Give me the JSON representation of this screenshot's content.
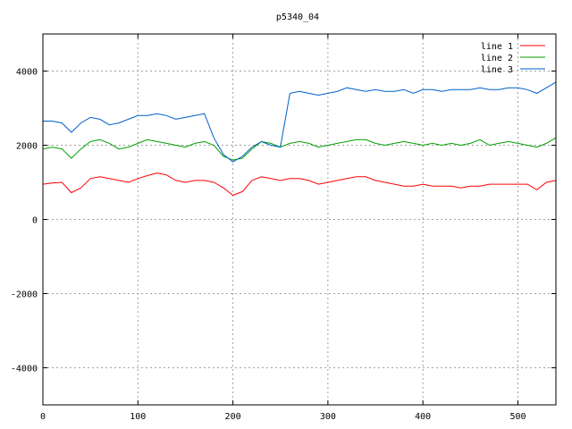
{
  "chart_data": {
    "type": "line",
    "title": "p5340_04",
    "xlabel": "",
    "ylabel": "",
    "xlim": [
      0,
      540
    ],
    "ylim": [
      -5000,
      5000
    ],
    "x_ticks": [
      0,
      100,
      200,
      300,
      400,
      500
    ],
    "y_ticks": [
      -4000,
      -2000,
      0,
      2000,
      4000
    ],
    "x_tick_labels": [
      "0",
      "100",
      "200",
      "300",
      "400",
      "500"
    ],
    "y_tick_labels": [
      "-4000",
      "-2000",
      "0",
      "2000",
      "4000"
    ],
    "grid": true,
    "legend_position": "top-right",
    "x": [
      0,
      10,
      20,
      30,
      40,
      50,
      60,
      70,
      80,
      90,
      100,
      110,
      120,
      130,
      140,
      150,
      160,
      170,
      180,
      190,
      200,
      210,
      220,
      230,
      240,
      250,
      260,
      270,
      280,
      290,
      300,
      310,
      320,
      330,
      340,
      350,
      360,
      370,
      380,
      390,
      400,
      410,
      420,
      430,
      440,
      450,
      460,
      470,
      480,
      490,
      500,
      510,
      520,
      530,
      540
    ],
    "series": [
      {
        "name": "line 1",
        "color": "#ff0000",
        "values": [
          950,
          980,
          1000,
          720,
          850,
          1100,
          1150,
          1100,
          1050,
          1000,
          1100,
          1180,
          1250,
          1200,
          1050,
          1000,
          1050,
          1050,
          1000,
          850,
          650,
          750,
          1050,
          1150,
          1100,
          1050,
          1100,
          1100,
          1050,
          950,
          1000,
          1050,
          1100,
          1150,
          1150,
          1050,
          1000,
          950,
          900,
          900,
          950,
          900,
          900,
          900,
          850,
          900,
          900,
          950,
          950,
          950,
          950,
          950,
          800,
          1000,
          1050
        ]
      },
      {
        "name": "line 2",
        "color": "#00a000",
        "values": [
          1900,
          1950,
          1900,
          1650,
          1900,
          2100,
          2150,
          2050,
          1900,
          1950,
          2050,
          2150,
          2100,
          2050,
          2000,
          1950,
          2050,
          2100,
          2000,
          1700,
          1600,
          1650,
          1900,
          2100,
          2050,
          1950,
          2050,
          2100,
          2050,
          1950,
          2000,
          2050,
          2100,
          2150,
          2150,
          2050,
          2000,
          2050,
          2100,
          2050,
          2000,
          2050,
          2000,
          2050,
          2000,
          2050,
          2150,
          2000,
          2050,
          2100,
          2050,
          2000,
          1950,
          2050,
          2200
        ]
      },
      {
        "name": "line 3",
        "color": "#0060c8",
        "values": [
          2650,
          2650,
          2600,
          2350,
          2600,
          2750,
          2700,
          2550,
          2600,
          2700,
          2800,
          2800,
          2850,
          2800,
          2700,
          2750,
          2800,
          2850,
          2200,
          1750,
          1550,
          1700,
          1950,
          2100,
          2000,
          1950,
          3400,
          3450,
          3400,
          3350,
          3400,
          3450,
          3550,
          3500,
          3450,
          3500,
          3450,
          3450,
          3500,
          3400,
          3500,
          3500,
          3450,
          3500,
          3500,
          3500,
          3550,
          3500,
          3500,
          3550,
          3550,
          3500,
          3400,
          3550,
          3700
        ]
      }
    ]
  }
}
